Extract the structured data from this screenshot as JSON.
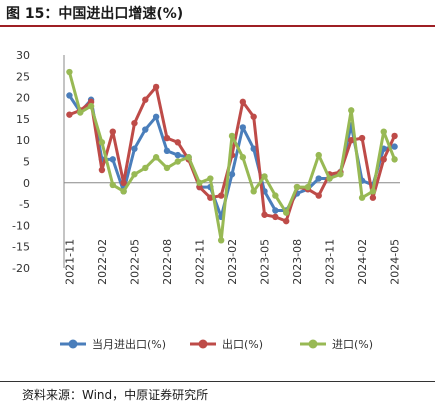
{
  "title": "图 15：中国进出口增速(%)",
  "source": "资料来源：Wind，中原证券研究所",
  "chart_data": {
    "type": "line",
    "ylim": [
      -20,
      30
    ],
    "yticks": [
      -20,
      -15,
      -10,
      -5,
      0,
      5,
      10,
      15,
      20,
      25,
      30
    ],
    "x": [
      "2021-11",
      "2021-12",
      "2022-01",
      "2022-02",
      "2022-03",
      "2022-04",
      "2022-05",
      "2022-06",
      "2022-07",
      "2022-08",
      "2022-09",
      "2022-10",
      "2022-11",
      "2022-12",
      "2023-01",
      "2023-02",
      "2023-03",
      "2023-04",
      "2023-05",
      "2023-06",
      "2023-07",
      "2023-08",
      "2023-09",
      "2023-10",
      "2023-11",
      "2023-12",
      "2024-01",
      "2024-02",
      "2024-03",
      "2024-04",
      "2024-05"
    ],
    "xticks": [
      "2021-11",
      "2022-02",
      "2022-05",
      "2022-08",
      "2022-11",
      "2023-02",
      "2023-05",
      "2023-08",
      "2023-11",
      "2024-02",
      "2024-05"
    ],
    "grid": false,
    "legend_position": "bottom",
    "series": [
      {
        "name": "当月进出口(%)",
        "color": "#4a7ebb",
        "values": [
          20.5,
          16.6,
          19.5,
          5.5,
          5.5,
          -2.0,
          8.0,
          12.5,
          15.5,
          7.5,
          6.5,
          6.0,
          -1.0,
          -1.0,
          -8.0,
          2.0,
          13.0,
          8.0,
          -2.0,
          -6.5,
          -6.5,
          -2.5,
          -1.5,
          1.0,
          1.0,
          2.5,
          13.5,
          0.5,
          -0.5,
          8.0,
          8.5
        ]
      },
      {
        "name": "出口(%)",
        "color": "#be4b48",
        "values": [
          16.0,
          17.0,
          19.0,
          3.0,
          12.0,
          0.0,
          14.0,
          19.5,
          22.5,
          10.5,
          9.5,
          5.5,
          -1.0,
          -3.5,
          -3.0,
          6.5,
          19.0,
          15.5,
          -7.5,
          -8.0,
          -9.0,
          -1.0,
          -1.5,
          -3.0,
          2.0,
          2.5,
          10.0,
          10.5,
          -3.5,
          5.5,
          11.0
        ]
      },
      {
        "name": "进口(%)",
        "color": "#98b954",
        "values": [
          26.0,
          16.5,
          18.0,
          9.5,
          -0.5,
          -2.0,
          2.0,
          3.5,
          6.0,
          3.5,
          5.0,
          6.0,
          0.0,
          1.0,
          -13.5,
          11.0,
          6.0,
          -2.0,
          1.5,
          -3.0,
          -7.0,
          -1.0,
          -1.0,
          6.5,
          1.0,
          2.0,
          17.0,
          -3.5,
          -2.0,
          12.0,
          5.5
        ]
      }
    ]
  }
}
